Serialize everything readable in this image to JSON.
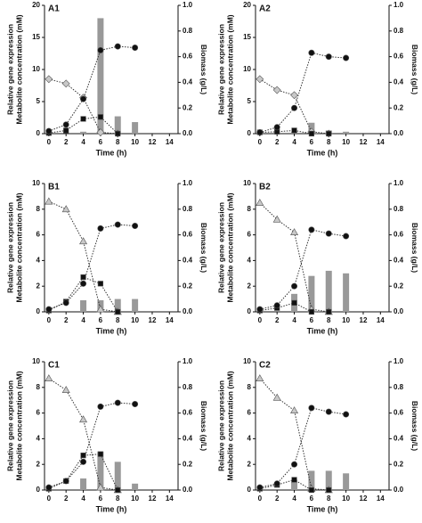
{
  "chart_data": [
    {
      "type": "bar",
      "title": "A1",
      "xlabel": "Time (h)",
      "ylabel": [
        "Relative gene expression",
        "Metabolite concentration (mM)"
      ],
      "y2label": "Biomass (g/L)",
      "xlim": [
        -0.5,
        15
      ],
      "xticks": [
        0,
        2,
        4,
        6,
        8,
        10,
        12,
        14
      ],
      "ylim": [
        0,
        20
      ],
      "yticks": [
        0,
        5,
        10,
        15,
        20
      ],
      "y2lim": [
        0,
        1
      ],
      "y2ticks": [
        {
          "value": 0,
          "label": "0.0"
        },
        {
          "value": 0.2,
          "label": "0.2"
        },
        {
          "value": 0.4,
          "label": "0.4"
        },
        {
          "value": 0.6,
          "label": "0.6"
        },
        {
          "value": 0.8,
          "label": "0.8"
        },
        {
          "value": 1,
          "label": "1.0"
        }
      ],
      "series": [
        {
          "marker": "bar",
          "color": "#999999",
          "x": [
            4,
            6,
            8,
            10
          ],
          "values": [
            0.3,
            18,
            2.7,
            1.8
          ]
        },
        {
          "marker": "diamond",
          "color": "#c8c8c8",
          "x": [
            0,
            2,
            4,
            6,
            8
          ],
          "values": [
            8.5,
            7.8,
            5.6,
            0.2,
            0
          ]
        },
        {
          "marker": "square",
          "color": "#111111",
          "x": [
            0,
            2,
            4,
            6,
            8
          ],
          "values": [
            0.1,
            0.5,
            2.3,
            2.6,
            0
          ]
        },
        {
          "marker": "circle",
          "color": "#111111",
          "axis": "y2",
          "x": [
            0,
            2,
            4,
            6,
            8,
            10
          ],
          "values": [
            0.02,
            0.07,
            0.27,
            0.65,
            0.68,
            0.67
          ]
        }
      ]
    },
    {
      "type": "bar",
      "title": "A2",
      "xlabel": "Time (h)",
      "ylabel": [
        "Relative gene expression",
        "Metabolite concentration (mM)"
      ],
      "y2label": "Biomass (g/L)",
      "xlim": [
        -0.5,
        15
      ],
      "xticks": [
        0,
        2,
        4,
        6,
        8,
        10,
        12,
        14
      ],
      "ylim": [
        0,
        20
      ],
      "yticks": [
        0,
        5,
        10,
        15,
        20
      ],
      "y2lim": [
        0,
        1
      ],
      "y2ticks": [
        {
          "value": 0,
          "label": "0.0"
        },
        {
          "value": 0.2,
          "label": "0.2"
        },
        {
          "value": 0.4,
          "label": "0.4"
        },
        {
          "value": 0.6,
          "label": "0.6"
        },
        {
          "value": 0.8,
          "label": "0.8"
        },
        {
          "value": 1,
          "label": "1.0"
        }
      ],
      "series": [
        {
          "marker": "bar",
          "color": "#999999",
          "x": [
            4,
            6,
            8,
            10
          ],
          "values": [
            0.3,
            1.7,
            0.5,
            0.3
          ]
        },
        {
          "marker": "diamond",
          "color": "#c8c8c8",
          "x": [
            0,
            2,
            4,
            6,
            8
          ],
          "values": [
            8.5,
            6.8,
            6,
            0.3,
            0
          ]
        },
        {
          "marker": "square",
          "color": "#111111",
          "x": [
            0,
            2,
            4,
            6,
            8
          ],
          "values": [
            0.2,
            0.3,
            0.5,
            0,
            0
          ]
        },
        {
          "marker": "circle",
          "color": "#111111",
          "axis": "y2",
          "x": [
            0,
            2,
            4,
            6,
            8,
            10
          ],
          "values": [
            0.01,
            0.05,
            0.2,
            0.63,
            0.6,
            0.59
          ]
        }
      ]
    },
    {
      "type": "bar",
      "title": "B1",
      "xlabel": "Time (h)",
      "ylabel": [
        "Relative gene expression",
        "Metabolite concentration (mM)"
      ],
      "y2label": "Biomass (g/L)",
      "xlim": [
        -0.5,
        15
      ],
      "xticks": [
        0,
        2,
        4,
        6,
        8,
        10,
        12,
        14
      ],
      "ylim": [
        0,
        10
      ],
      "yticks": [
        0,
        2,
        4,
        6,
        8,
        10
      ],
      "y2lim": [
        0,
        1
      ],
      "y2ticks": [
        {
          "value": 0,
          "label": "0.0"
        },
        {
          "value": 0.2,
          "label": "0.2"
        },
        {
          "value": 0.4,
          "label": "0.4"
        },
        {
          "value": 0.6,
          "label": "0.6"
        },
        {
          "value": 0.8,
          "label": "0.8"
        },
        {
          "value": 1,
          "label": "1.0"
        }
      ],
      "series": [
        {
          "marker": "bar",
          "color": "#999999",
          "x": [
            4,
            6,
            8,
            10
          ],
          "values": [
            0.9,
            0.9,
            1,
            1
          ]
        },
        {
          "marker": "triangle",
          "color": "#c8c8c8",
          "x": [
            0,
            2,
            4,
            6,
            8
          ],
          "values": [
            8.6,
            8,
            5.5,
            0.2,
            0
          ]
        },
        {
          "marker": "square",
          "color": "#111111",
          "x": [
            0,
            2,
            4,
            6,
            8
          ],
          "values": [
            0.1,
            0.8,
            2.7,
            2.2,
            0
          ]
        },
        {
          "marker": "circle",
          "color": "#111111",
          "axis": "y2",
          "x": [
            0,
            2,
            4,
            6,
            8,
            10
          ],
          "values": [
            0.02,
            0.07,
            0.22,
            0.65,
            0.68,
            0.67
          ]
        }
      ]
    },
    {
      "type": "bar",
      "title": "B2",
      "xlabel": "Time (h)",
      "ylabel": [
        "Relative gene expression",
        "Metabolite concentration (mM)"
      ],
      "y2label": "Biomass (g/L)",
      "xlim": [
        -0.5,
        15
      ],
      "xticks": [
        0,
        2,
        4,
        6,
        8,
        10,
        12,
        14
      ],
      "ylim": [
        0,
        10
      ],
      "yticks": [
        0,
        2,
        4,
        6,
        8,
        10
      ],
      "y2lim": [
        0,
        1
      ],
      "y2ticks": [
        {
          "value": 0,
          "label": "0.0"
        },
        {
          "value": 0.2,
          "label": "0.2"
        },
        {
          "value": 0.4,
          "label": "0.4"
        },
        {
          "value": 0.6,
          "label": "0.6"
        },
        {
          "value": 0.8,
          "label": "0.8"
        },
        {
          "value": 1,
          "label": "1.0"
        }
      ],
      "series": [
        {
          "marker": "bar",
          "color": "#999999",
          "x": [
            4,
            6,
            8,
            10
          ],
          "values": [
            1.4,
            2.8,
            3.2,
            3
          ]
        },
        {
          "marker": "triangle",
          "color": "#c8c8c8",
          "x": [
            0,
            2,
            4,
            6,
            8
          ],
          "values": [
            8.5,
            7.2,
            6.2,
            0.2,
            0
          ]
        },
        {
          "marker": "square",
          "color": "#111111",
          "x": [
            0,
            2,
            4,
            6,
            8
          ],
          "values": [
            0.1,
            0.3,
            0.7,
            0,
            0
          ]
        },
        {
          "marker": "circle",
          "color": "#111111",
          "axis": "y2",
          "x": [
            0,
            2,
            4,
            6,
            8,
            10
          ],
          "values": [
            0.02,
            0.05,
            0.2,
            0.64,
            0.61,
            0.59
          ]
        }
      ]
    },
    {
      "type": "bar",
      "title": "C1",
      "xlabel": "Time (h)",
      "ylabel": [
        "Relative gene expression",
        "Metabolite concentration (mM)"
      ],
      "y2label": "Biomass (g/L)",
      "xlim": [
        -0.5,
        15
      ],
      "xticks": [
        0,
        2,
        4,
        6,
        8,
        10,
        12,
        14
      ],
      "ylim": [
        0,
        10
      ],
      "yticks": [
        0,
        2,
        4,
        6,
        8,
        10
      ],
      "y2lim": [
        0,
        1
      ],
      "y2ticks": [
        {
          "value": 0,
          "label": "0.0"
        },
        {
          "value": 0.2,
          "label": "0.2"
        },
        {
          "value": 0.4,
          "label": "0.4"
        },
        {
          "value": 0.6,
          "label": "0.6"
        },
        {
          "value": 0.8,
          "label": "0.8"
        },
        {
          "value": 1,
          "label": "1.0"
        }
      ],
      "series": [
        {
          "marker": "bar",
          "color": "#999999",
          "x": [
            4,
            6,
            8,
            10
          ],
          "values": [
            0.9,
            3,
            2.2,
            0.5
          ]
        },
        {
          "marker": "triangle",
          "color": "#c8c8c8",
          "x": [
            0,
            2,
            4,
            6,
            8
          ],
          "values": [
            8.7,
            7.8,
            5.5,
            0.2,
            0
          ]
        },
        {
          "marker": "square",
          "color": "#111111",
          "x": [
            0,
            2,
            4,
            6,
            8
          ],
          "values": [
            0.1,
            0.7,
            2.7,
            2.8,
            0
          ]
        },
        {
          "marker": "circle",
          "color": "#111111",
          "axis": "y2",
          "x": [
            0,
            2,
            4,
            6,
            8,
            10
          ],
          "values": [
            0.02,
            0.07,
            0.22,
            0.65,
            0.68,
            0.67
          ]
        }
      ]
    },
    {
      "type": "bar",
      "title": "C2",
      "xlabel": "Time (h)",
      "ylabel": [
        "Relative gene expression",
        "Metabolite concentration (mM)"
      ],
      "y2label": "Biomass (g/L)",
      "xlim": [
        -0.5,
        15
      ],
      "xticks": [
        0,
        2,
        4,
        6,
        8,
        10,
        12,
        14
      ],
      "ylim": [
        0,
        10
      ],
      "yticks": [
        0,
        2,
        4,
        6,
        8,
        10
      ],
      "y2lim": [
        0,
        1
      ],
      "y2ticks": [
        {
          "value": 0,
          "label": "0.0"
        },
        {
          "value": 0.2,
          "label": "0.2"
        },
        {
          "value": 0.4,
          "label": "0.4"
        },
        {
          "value": 0.6,
          "label": "0.6"
        },
        {
          "value": 0.8,
          "label": "0.8"
        },
        {
          "value": 1,
          "label": "1.0"
        }
      ],
      "series": [
        {
          "marker": "bar",
          "color": "#999999",
          "x": [
            4,
            6,
            8,
            10
          ],
          "values": [
            0.8,
            1.5,
            1.5,
            1.3
          ]
        },
        {
          "marker": "triangle",
          "color": "#c8c8c8",
          "x": [
            0,
            2,
            4,
            6,
            8
          ],
          "values": [
            8.7,
            7.2,
            6.2,
            0.1,
            0
          ]
        },
        {
          "marker": "square",
          "color": "#111111",
          "x": [
            0,
            2,
            4,
            6,
            8
          ],
          "values": [
            0.1,
            0.4,
            0.8,
            0,
            0
          ]
        },
        {
          "marker": "circle",
          "color": "#111111",
          "axis": "y2",
          "x": [
            0,
            2,
            4,
            6,
            8,
            10
          ],
          "values": [
            0.02,
            0.05,
            0.2,
            0.64,
            0.61,
            0.59
          ]
        }
      ]
    }
  ]
}
